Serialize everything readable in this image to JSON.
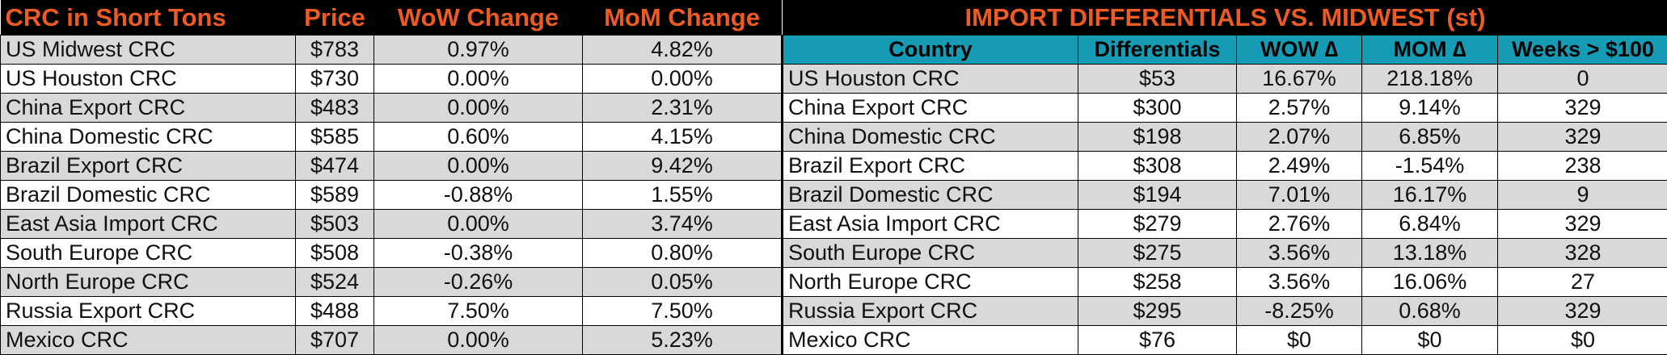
{
  "left_table": {
    "headers": [
      "CRC in Short Tons",
      "Price",
      "WoW Change",
      "MoM Change"
    ],
    "rows": [
      [
        "US Midwest CRC",
        "$783",
        "0.97%",
        "4.82%"
      ],
      [
        "US Houston CRC",
        "$730",
        "0.00%",
        "0.00%"
      ],
      [
        "China Export CRC",
        "$483",
        "0.00%",
        "2.31%"
      ],
      [
        "China Domestic CRC",
        "$585",
        "0.60%",
        "4.15%"
      ],
      [
        "Brazil Export CRC",
        "$474",
        "0.00%",
        "9.42%"
      ],
      [
        "Brazil Domestic CRC",
        "$589",
        "-0.88%",
        "1.55%"
      ],
      [
        "East Asia Import CRC",
        "$503",
        "0.00%",
        "3.74%"
      ],
      [
        "South Europe CRC",
        "$508",
        "-0.38%",
        "0.80%"
      ],
      [
        "North Europe CRC",
        "$524",
        "-0.26%",
        "0.05%"
      ],
      [
        "Russia Export CRC",
        "$488",
        "7.50%",
        "7.50%"
      ],
      [
        "Mexico CRC",
        "$707",
        "0.00%",
        "5.23%"
      ]
    ]
  },
  "right_table": {
    "title": "IMPORT DIFFERENTIALS VS. MIDWEST (st)",
    "headers": [
      "Country",
      "Differentials",
      "WOW ∆",
      "MOM ∆",
      "Weeks > $100"
    ],
    "rows": [
      [
        "US Houston CRC",
        "$53",
        "16.67%",
        "218.18%",
        "0"
      ],
      [
        "China Export CRC",
        "$300",
        "2.57%",
        "9.14%",
        "329"
      ],
      [
        "China Domestic CRC",
        "$198",
        "2.07%",
        "6.85%",
        "329"
      ],
      [
        "Brazil Export CRC",
        "$308",
        "2.49%",
        "-1.54%",
        "238"
      ],
      [
        "Brazil Domestic CRC",
        "$194",
        "7.01%",
        "16.17%",
        "9"
      ],
      [
        "East Asia Import CRC",
        "$279",
        "2.76%",
        "6.84%",
        "329"
      ],
      [
        "South Europe CRC",
        "$275",
        "3.56%",
        "13.18%",
        "328"
      ],
      [
        "North Europe CRC",
        "$258",
        "3.56%",
        "16.06%",
        "27"
      ],
      [
        "Russia Export CRC",
        "$295",
        "-8.25%",
        "0.68%",
        "329"
      ],
      [
        "Mexico CRC",
        "$76",
        "$0",
        "$0",
        "$0"
      ]
    ]
  },
  "colors": {
    "header_bg": "#000000",
    "header_text": "#ee5a24",
    "teal_header_bg": "#159cb4",
    "stripe": "#d9d9d9"
  }
}
